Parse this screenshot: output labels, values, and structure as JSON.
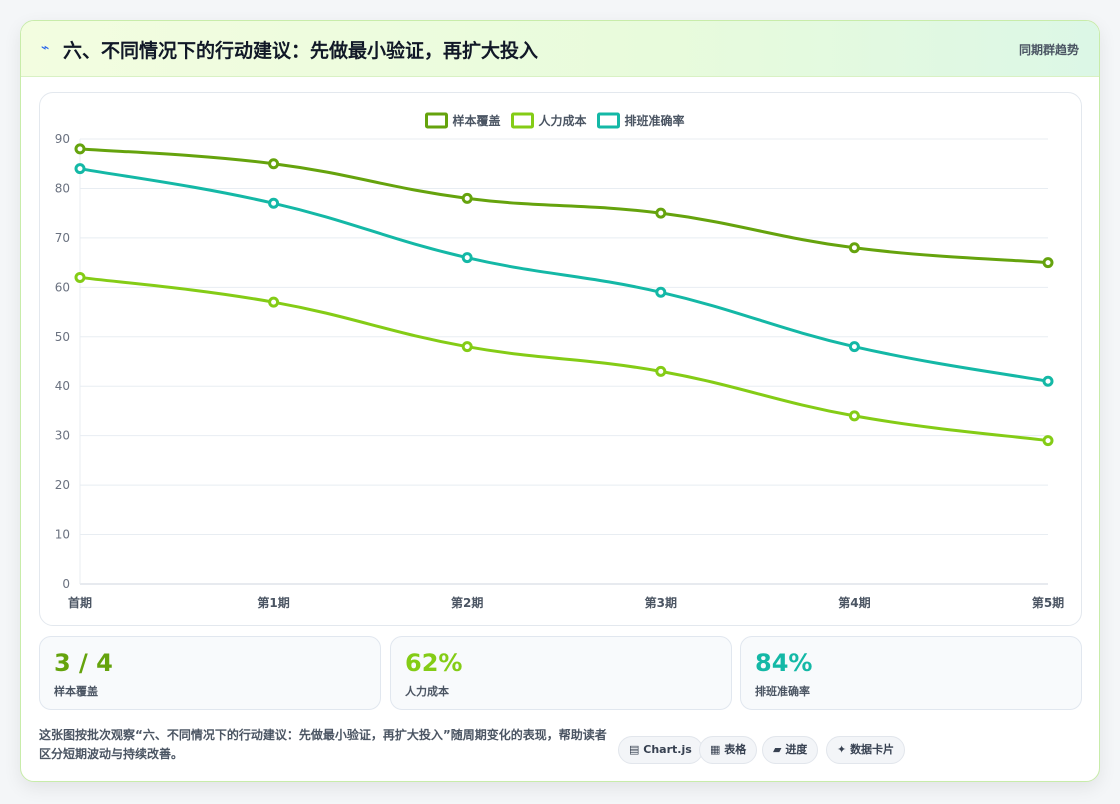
{
  "header": {
    "icon": "⌁",
    "title": "六、不同情况下的行动建议：先做最小验证，再扩大投入",
    "tag": "同期群趋势"
  },
  "chart_data": {
    "type": "line",
    "categories": [
      "首期",
      "第1期",
      "第2期",
      "第3期",
      "第4期",
      "第5期"
    ],
    "ylim": [
      0,
      90
    ],
    "yticks": [
      0,
      10,
      20,
      30,
      40,
      50,
      60,
      70,
      80,
      90
    ],
    "grid": true,
    "legend_position": "top-center",
    "series": [
      {
        "name": "样本覆盖",
        "color": "#65a30d",
        "values": [
          88,
          85,
          78,
          75,
          68,
          65
        ]
      },
      {
        "name": "人力成本",
        "color": "#84cc16",
        "values": [
          62,
          57,
          48,
          43,
          34,
          29
        ]
      },
      {
        "name": "排班准确率",
        "color": "#14b8a6",
        "values": [
          84,
          77,
          66,
          59,
          48,
          41
        ]
      }
    ]
  },
  "stats": [
    {
      "value": "3 / 4",
      "label": "样本覆盖",
      "color": "#65a30d"
    },
    {
      "value": "62%",
      "label": "人力成本",
      "color": "#84cc16"
    },
    {
      "value": "84%",
      "label": "排班准确率",
      "color": "#14b8a6"
    }
  ],
  "footnote": "这张图按批次观察“六、不同情况下的行动建议：先做最小验证，再扩大投入”随周期变化的表现，帮助读者区分短期波动与持续改善。",
  "pills": [
    {
      "icon": "▤",
      "label": "Chart.js"
    },
    {
      "icon": "▦",
      "label": "表格"
    },
    {
      "icon": "▰",
      "label": "进度"
    },
    {
      "icon": "✦",
      "label": "数据卡片"
    }
  ]
}
